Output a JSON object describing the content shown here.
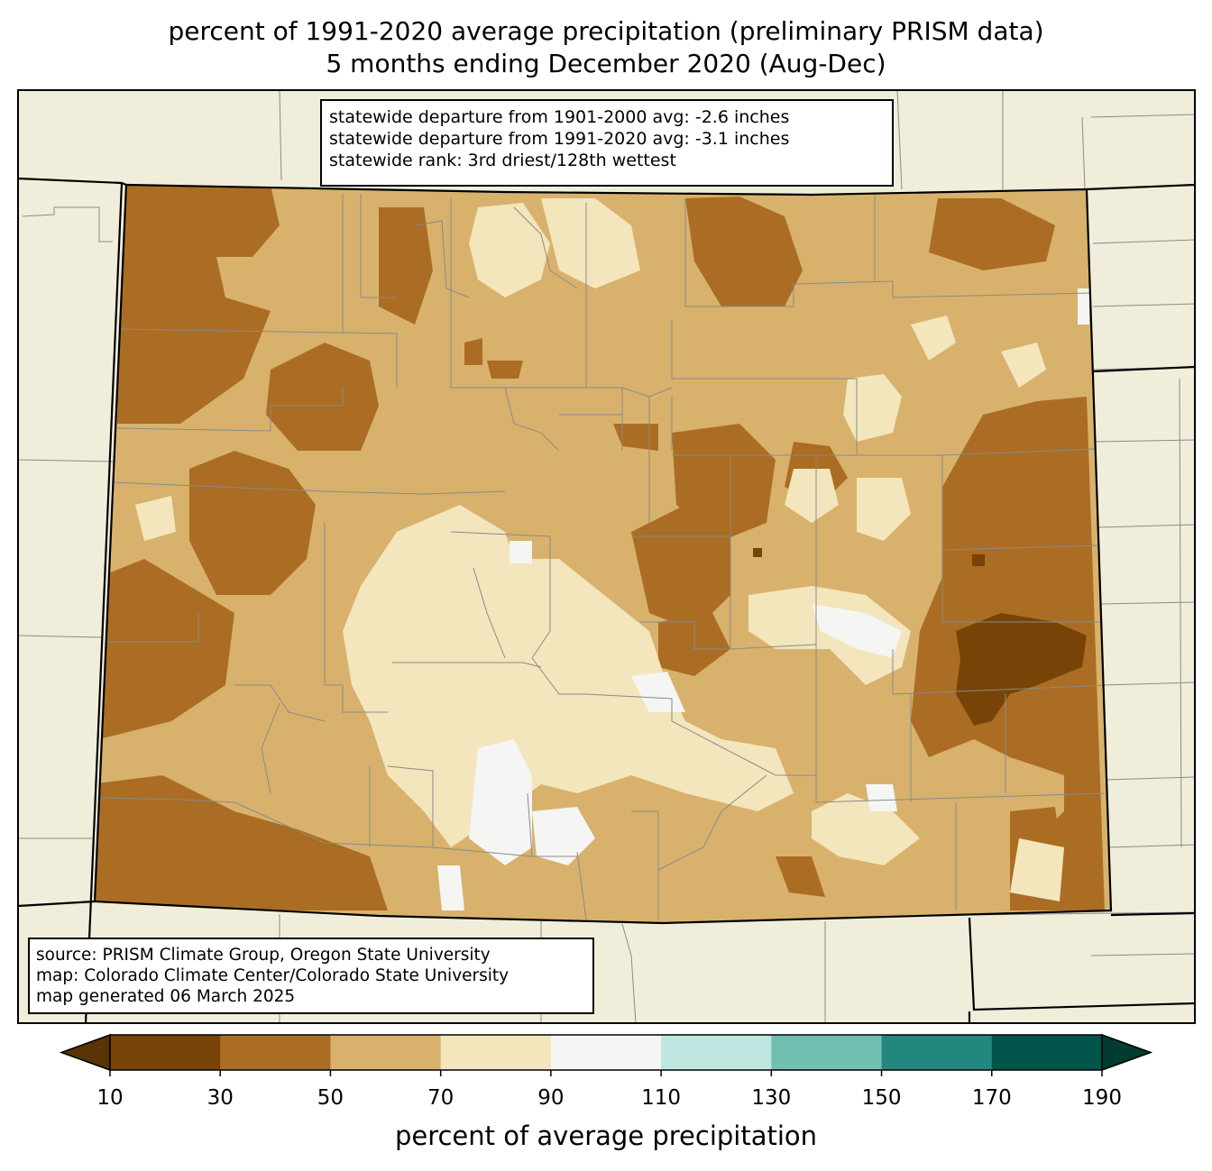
{
  "title": {
    "line1": "percent of 1991-2020 average precipitation (preliminary PRISM data)",
    "line2": "5 months ending December 2020 (Aug-Dec)"
  },
  "stats_box": {
    "line1": "statewide departure from 1901-2000 avg: -2.6 inches",
    "line2": "statewide departure from 1991-2020 avg: -3.1 inches",
    "line3": "statewide rank: 3rd driest/128th wettest"
  },
  "source_box": {
    "line1": "source: PRISM Climate Group, Oregon State University",
    "line2": "map: Colorado Climate Center/Colorado State University",
    "line3": "map generated 06 March 2025"
  },
  "colorbar": {
    "label": "percent of average precipitation",
    "ticks": [
      "10",
      "30",
      "50",
      "70",
      "90",
      "110",
      "130",
      "150",
      "170",
      "190"
    ],
    "colors": [
      "#774307",
      "#ab6d23",
      "#d8b26c",
      "#f3e5bc",
      "#f5f5f3",
      "#bee7e2",
      "#70bfb1",
      "#238780",
      "#01554b"
    ],
    "under_color": "#5a3306",
    "over_color": "#003c30"
  },
  "map_colors": {
    "background": "#f0eedb",
    "borders": "#000000",
    "county_lines": "#8a8a8a"
  }
}
